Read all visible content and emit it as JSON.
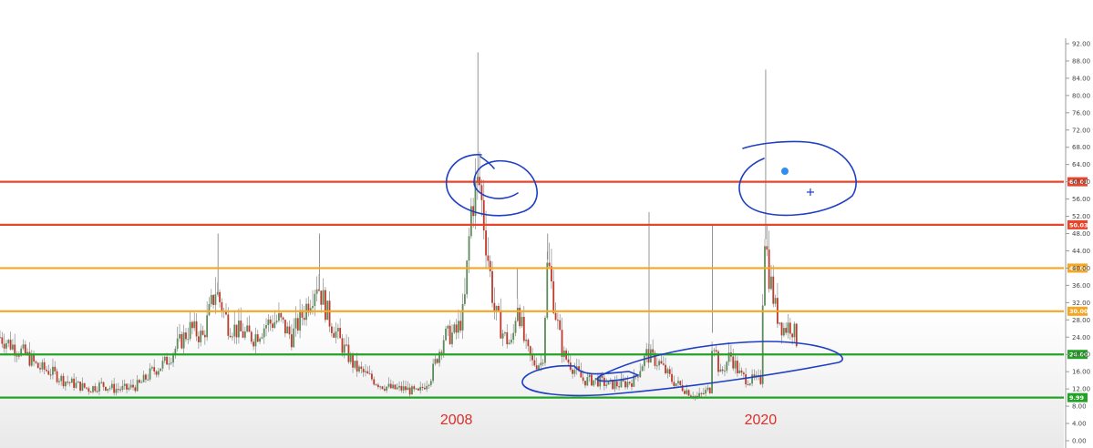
{
  "chart_data": {
    "type": "candlestick",
    "y_axis": {
      "min": 0,
      "max": 92,
      "ticks": [
        "92.00",
        "88.00",
        "84.00",
        "80.00",
        "76.00",
        "72.00",
        "68.00",
        "64.00",
        "60.00",
        "56.00",
        "52.00",
        "48.00",
        "44.00",
        "40.00",
        "36.00",
        "32.00",
        "28.00",
        "24.00",
        "20.00",
        "16.00",
        "12.00",
        "8.00",
        "4.00",
        "0.00"
      ],
      "position": "right"
    },
    "x_labels": [
      {
        "text": "2008",
        "year": 2008
      },
      {
        "text": "2020",
        "year": 2020
      }
    ],
    "x_range": [
      1990,
      2022
    ],
    "levels": [
      {
        "value": 60.01,
        "label": "60.01",
        "color": "#e8442a"
      },
      {
        "value": 50.03,
        "label": "50.03",
        "color": "#e8442a"
      },
      {
        "value": 40.0,
        "label": "40.00",
        "color": "#f5a623"
      },
      {
        "value": 30.0,
        "label": "30.00",
        "color": "#f5a623"
      },
      {
        "value": 20.0,
        "label": "20.00",
        "color": "#22a325"
      },
      {
        "value": 9.99,
        "label": "9.99",
        "color": "#22a325"
      }
    ],
    "series_profile": [
      [
        1990.0,
        24
      ],
      [
        1990.5,
        22
      ],
      [
        1991.0,
        20
      ],
      [
        1991.5,
        17
      ],
      [
        1992.0,
        16
      ],
      [
        1992.5,
        14
      ],
      [
        1993.0,
        13
      ],
      [
        1993.5,
        12
      ],
      [
        1994.0,
        13
      ],
      [
        1994.5,
        12
      ],
      [
        1995.0,
        12
      ],
      [
        1995.5,
        13
      ],
      [
        1996.0,
        16
      ],
      [
        1996.5,
        18
      ],
      [
        1997.0,
        22
      ],
      [
        1997.5,
        26
      ],
      [
        1998.0,
        24
      ],
      [
        1998.5,
        35
      ],
      [
        1999.0,
        27
      ],
      [
        1999.5,
        25
      ],
      [
        2000.0,
        24
      ],
      [
        2000.5,
        27
      ],
      [
        2001.0,
        28
      ],
      [
        2001.5,
        24
      ],
      [
        2002.0,
        30
      ],
      [
        2002.5,
        37
      ],
      [
        2003.0,
        28
      ],
      [
        2003.5,
        22
      ],
      [
        2004.0,
        17
      ],
      [
        2004.5,
        15
      ],
      [
        2005.0,
        13
      ],
      [
        2005.5,
        12
      ],
      [
        2006.0,
        12
      ],
      [
        2006.5,
        11
      ],
      [
        2007.0,
        15
      ],
      [
        2007.5,
        24
      ],
      [
        2008.0,
        25
      ],
      [
        2008.3,
        30
      ],
      [
        2008.6,
        55
      ],
      [
        2008.9,
        60
      ],
      [
        2009.2,
        45
      ],
      [
        2009.5,
        30
      ],
      [
        2009.9,
        24
      ],
      [
        2010.2,
        22
      ],
      [
        2010.4,
        33
      ],
      [
        2010.7,
        22
      ],
      [
        2011.0,
        18
      ],
      [
        2011.4,
        18
      ],
      [
        2011.6,
        42
      ],
      [
        2011.9,
        30
      ],
      [
        2012.2,
        20
      ],
      [
        2012.6,
        17
      ],
      [
        2013.0,
        14
      ],
      [
        2013.5,
        14
      ],
      [
        2014.0,
        13
      ],
      [
        2014.5,
        13
      ],
      [
        2015.0,
        14
      ],
      [
        2015.5,
        20
      ],
      [
        2016.0,
        18
      ],
      [
        2016.5,
        14
      ],
      [
        2017.0,
        12
      ],
      [
        2017.5,
        10
      ],
      [
        2018.0,
        12
      ],
      [
        2018.1,
        25
      ],
      [
        2018.4,
        15
      ],
      [
        2018.8,
        20
      ],
      [
        2019.2,
        15
      ],
      [
        2019.6,
        14
      ],
      [
        2020.0,
        14
      ],
      [
        2020.15,
        50
      ],
      [
        2020.3,
        40
      ],
      [
        2020.6,
        30
      ],
      [
        2020.9,
        26
      ],
      [
        2021.2,
        27
      ],
      [
        2021.5,
        22
      ]
    ],
    "spikes": [
      [
        1998.6,
        48
      ],
      [
        2002.6,
        48
      ],
      [
        2008.85,
        90
      ],
      [
        2010.4,
        40
      ],
      [
        2011.6,
        48
      ],
      [
        2015.6,
        53
      ],
      [
        2018.1,
        50
      ],
      [
        2020.2,
        86
      ]
    ],
    "annotations": [
      {
        "type": "circle",
        "near": "2008 peak"
      },
      {
        "type": "circle",
        "near": "2020 peak"
      },
      {
        "type": "loop",
        "near": "2014-2020 lows"
      }
    ]
  }
}
